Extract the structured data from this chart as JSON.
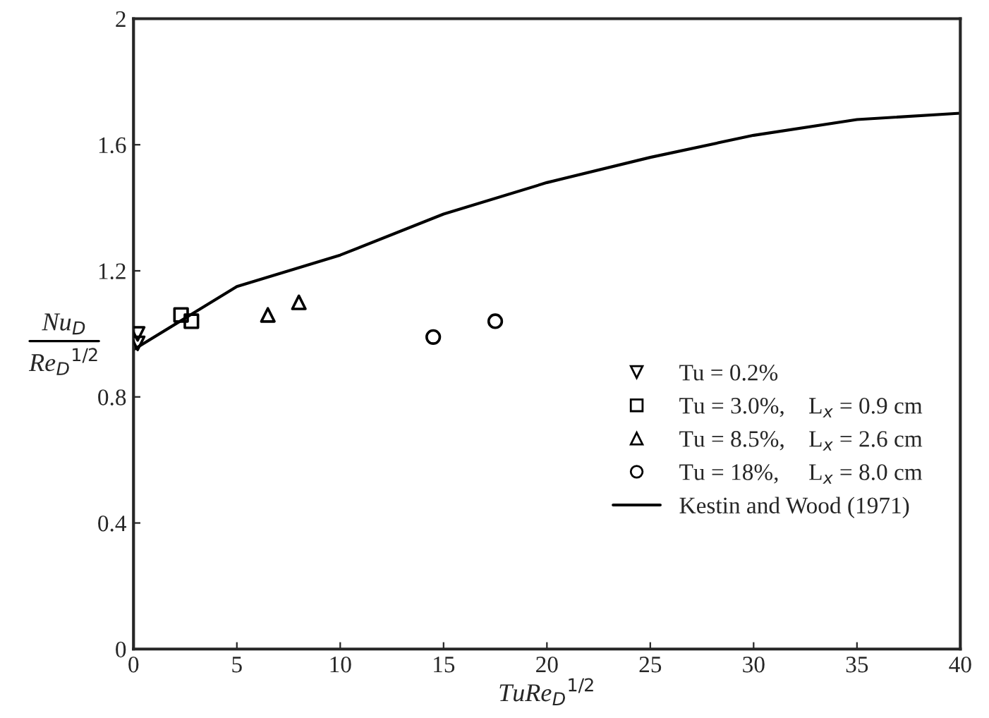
{
  "chart_data": {
    "type": "scatter",
    "xlabel": "TuRe$_{D}$$^{1/2}$",
    "ylabel": "Nu$_{D}$\nRe$_{D}$$^{1/2}$",
    "xlim": [
      0,
      40
    ],
    "ylim": [
      0,
      2
    ],
    "xticks": [
      0,
      5,
      10,
      15,
      20,
      25,
      30,
      35,
      40
    ],
    "yticks": [
      0,
      0.4,
      0.8,
      1.2,
      1.6,
      2
    ],
    "grid": false,
    "legend": "right",
    "series": [
      {
        "name": "Tu = 0.2%",
        "marker": "triangle_down",
        "color": "#000000",
        "x": [
          0.2,
          0.2
        ],
        "values": [
          1.0,
          0.97
        ]
      },
      {
        "name": "Tu = 3.0%,    L$_{x}$ = 0.9 cm",
        "marker": "square",
        "color": "#000000",
        "x": [
          2.3,
          2.8
        ],
        "values": [
          1.06,
          1.04
        ]
      },
      {
        "name": "Tu = 8.5%,    L$_{x}$ = 2.6 cm",
        "marker": "triangle",
        "color": "#000000",
        "x": [
          6.5,
          8
        ],
        "values": [
          1.06,
          1.1
        ]
      },
      {
        "name": "Tu = 18%,     L$_{x}$ = 8.0 cm",
        "marker": "circle",
        "color": "#000000",
        "x": [
          14.5,
          17.5
        ],
        "values": [
          0.99,
          1.04
        ]
      },
      {
        "name": "Kestin and Wood (1971)",
        "type": "line",
        "marker": "none",
        "line_style": "solid",
        "color": "#000000",
        "x": [
          0,
          2.5,
          5,
          10,
          15,
          20,
          25,
          30,
          35,
          40
        ],
        "values": [
          0.95,
          1.05,
          1.15,
          1.25,
          1.38,
          1.48,
          1.56,
          1.63,
          1.68,
          1.7
        ]
      }
    ]
  }
}
